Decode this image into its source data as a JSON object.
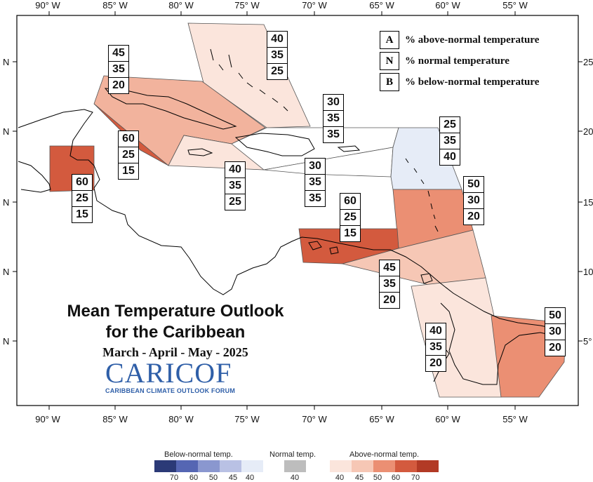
{
  "title_line1": "Mean Temperature Outlook",
  "title_line2": "for the Caribbean",
  "subtitle": "March - April - May - 2025",
  "logo": {
    "name": "CARICOF",
    "tagline": "CARIBBEAN CLIMATE OUTLOOK FORUM"
  },
  "key": [
    {
      "letter": "A",
      "text": "% above-normal temperature"
    },
    {
      "letter": "N",
      "text": "% normal temperature"
    },
    {
      "letter": "B",
      "text": "% below-normal temperature"
    }
  ],
  "axes": {
    "top_lon": [
      "90° W",
      "85° W",
      "80° W",
      "75° W",
      "70° W",
      "65° W",
      "60° W",
      "55° W"
    ],
    "bottom_lon": [
      "90° W",
      "85° W",
      "80° W",
      "75° W",
      "70° W",
      "65° W",
      "60° W",
      "55° W"
    ],
    "left_lat": [
      "N",
      "N",
      "N",
      "N",
      "N"
    ],
    "right_lat": [
      "25",
      "20",
      "15",
      "10",
      "5°"
    ]
  },
  "regions": [
    {
      "id": "bahamas",
      "above": "40",
      "normal": "35",
      "below": "25",
      "color": "#fbe5dc"
    },
    {
      "id": "cuba",
      "above": "45",
      "normal": "35",
      "below": "20",
      "color": "#f2b39d"
    },
    {
      "id": "western-caribbean",
      "above": "60",
      "normal": "25",
      "below": "15",
      "color": "#d35a3e"
    },
    {
      "id": "belize",
      "above": "60",
      "normal": "25",
      "below": "15",
      "color": "#d35a3e"
    },
    {
      "id": "hispaniola-north",
      "above": "30",
      "normal": "35",
      "below": "35",
      "color": "#ffffff"
    },
    {
      "id": "jamaica",
      "above": "40",
      "normal": "35",
      "below": "25",
      "color": "#fbe5dc"
    },
    {
      "id": "puerto-rico",
      "above": "30",
      "normal": "35",
      "below": "35",
      "color": "#ffffff"
    },
    {
      "id": "leeward-islands",
      "above": "25",
      "normal": "35",
      "below": "40",
      "color": "#e6ecf7"
    },
    {
      "id": "windward-islands",
      "above": "50",
      "normal": "30",
      "below": "20",
      "color": "#eb8f73"
    },
    {
      "id": "southern-caribbean",
      "above": "60",
      "normal": "25",
      "below": "15",
      "color": "#d35a3e"
    },
    {
      "id": "trinidad",
      "above": "45",
      "normal": "35",
      "below": "20",
      "color": "#f6c7b5"
    },
    {
      "id": "guyana",
      "above": "40",
      "normal": "35",
      "below": "20",
      "color": "#fbe5dc"
    },
    {
      "id": "suriname-french-guiana",
      "above": "50",
      "normal": "30",
      "below": "20",
      "color": "#eb8f73"
    }
  ],
  "legend": {
    "below_title": "Below-normal temp.",
    "normal_title": "Normal temp.",
    "above_title": "Above-normal temp.",
    "below_colors": [
      "#2b3a77",
      "#5566b3",
      "#8a97cf",
      "#b9c1e4",
      "#e6ecf7"
    ],
    "normal_color": "#bdbdbd",
    "above_colors": [
      "#fbe5dc",
      "#f6c7b5",
      "#eb8f73",
      "#d35a3e",
      "#b23a25"
    ],
    "below_ticks": [
      "70",
      "60",
      "50",
      "45",
      "40"
    ],
    "normal_tick": "40",
    "above_ticks": [
      "40",
      "45",
      "50",
      "60",
      "70"
    ]
  }
}
